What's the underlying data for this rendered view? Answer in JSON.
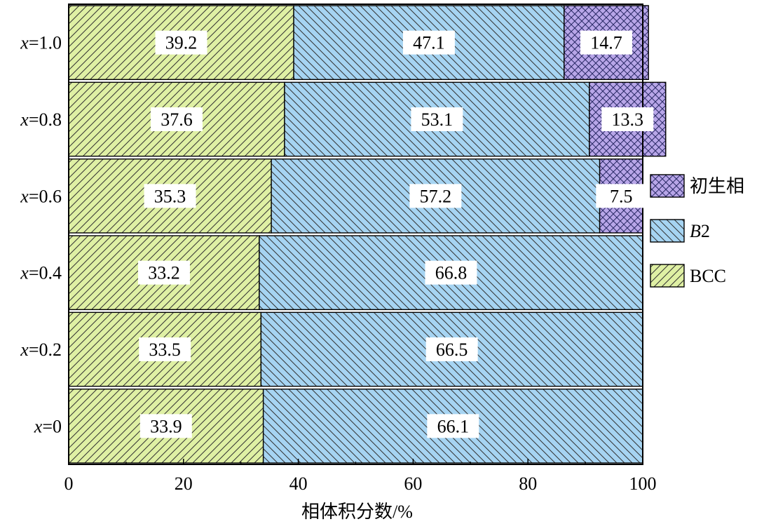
{
  "chart_data": {
    "type": "bar",
    "orientation": "horizontal",
    "stacked": true,
    "title": "",
    "xlabel": "相体积分数/%",
    "ylabel": "",
    "xlim": [
      0,
      100
    ],
    "xticks": [
      0,
      20,
      40,
      60,
      80,
      100
    ],
    "grid": false,
    "legend_position": "right",
    "categories": [
      {
        "var": "x",
        "eq": "=",
        "val": "1.0"
      },
      {
        "var": "x",
        "eq": "=",
        "val": "0.8"
      },
      {
        "var": "x",
        "eq": "=",
        "val": "0.6"
      },
      {
        "var": "x",
        "eq": "=",
        "val": "0.4"
      },
      {
        "var": "x",
        "eq": "=",
        "val": "0.2"
      },
      {
        "var": "x",
        "eq": "=",
        "val": "0"
      }
    ],
    "series": [
      {
        "name": "BCC",
        "name_parts": [
          {
            "text": "BCC",
            "italic": false
          }
        ],
        "color": "#dff0a4",
        "pattern": "diagonal-up",
        "values": [
          39.2,
          37.6,
          35.3,
          33.2,
          33.5,
          33.9
        ]
      },
      {
        "name": "B2",
        "name_parts": [
          {
            "text": "B",
            "italic": true
          },
          {
            "text": "2",
            "italic": false
          }
        ],
        "color": "#a6d4f2",
        "pattern": "diagonal-down",
        "values": [
          47.1,
          53.1,
          57.2,
          66.8,
          66.5,
          66.1
        ]
      },
      {
        "name": "初生相",
        "name_parts": [
          {
            "text": "初生相",
            "italic": false
          }
        ],
        "color": "#b8a6e8",
        "pattern": "crosshatch",
        "values": [
          14.7,
          13.3,
          7.5,
          0,
          0,
          0
        ]
      }
    ],
    "legend_order": [
      2,
      1,
      0
    ]
  }
}
